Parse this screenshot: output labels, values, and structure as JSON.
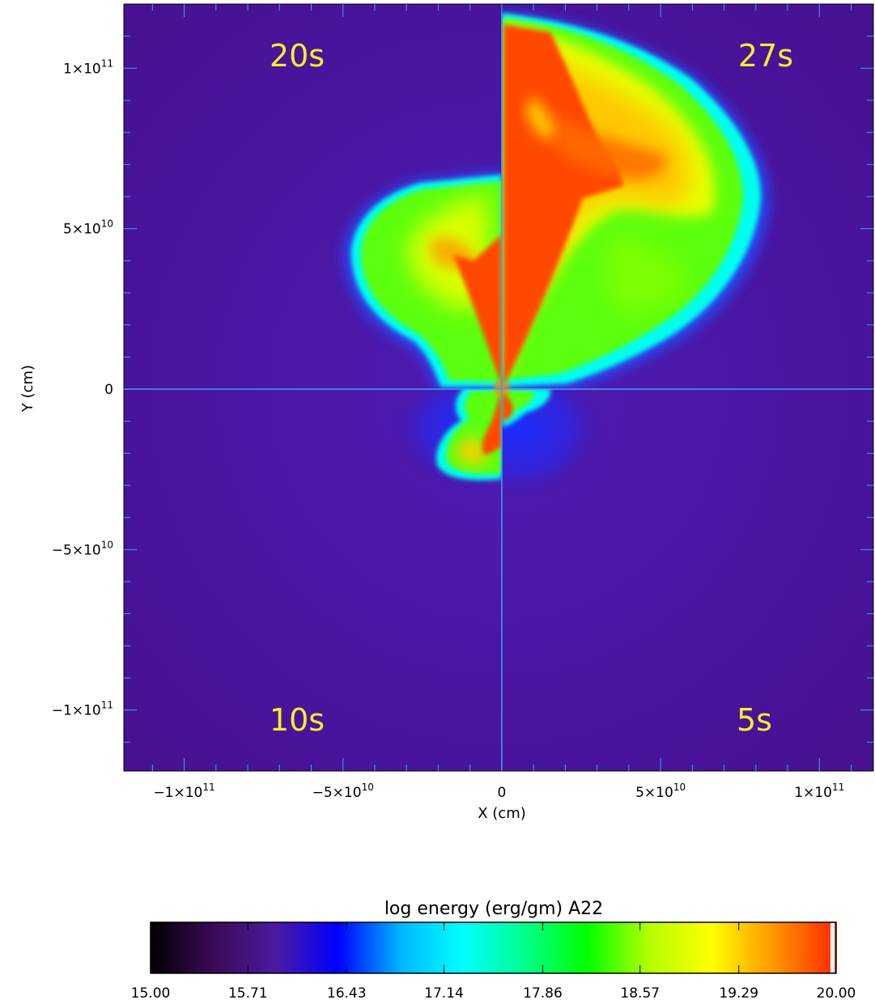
{
  "chart_data": {
    "type": "heatmap",
    "title": "",
    "xlabel": "X (cm)",
    "ylabel": "Y (cm)",
    "xlim": [
      -119000000000.0,
      117000000000.0
    ],
    "ylim": [
      -119000000000.0,
      120000000000.0
    ],
    "x_ticks": [
      {
        "value": -100000000000.0,
        "mant": "−1×10",
        "exp": "11"
      },
      {
        "value": -50000000000.0,
        "mant": "−5×10",
        "exp": "10"
      },
      {
        "value": 0,
        "mant": "0",
        "exp": ""
      },
      {
        "value": 50000000000.0,
        "mant": "5×10",
        "exp": "10"
      },
      {
        "value": 100000000000.0,
        "mant": "1×10",
        "exp": "11"
      }
    ],
    "y_ticks": [
      {
        "value": 100000000000.0,
        "mant": "1×10",
        "exp": "11"
      },
      {
        "value": 50000000000.0,
        "mant": "5×10",
        "exp": "10"
      },
      {
        "value": 0,
        "mant": "0",
        "exp": ""
      },
      {
        "value": -50000000000.0,
        "mant": "−5×10",
        "exp": "10"
      },
      {
        "value": -100000000000.0,
        "mant": "−1×10",
        "exp": "11"
      }
    ],
    "quadrant_labels": {
      "top_left": "20s",
      "top_right": "27s",
      "bottom_left": "10s",
      "bottom_right": "5s"
    },
    "colorbar": {
      "title": "log energy (erg/gm) A22",
      "range": [
        15.0,
        20.0
      ],
      "ticks": [
        "15.00",
        "15.71",
        "16.43",
        "17.14",
        "17.86",
        "18.57",
        "19.29",
        "20.00"
      ],
      "colormap": [
        "#000000",
        "#3a0a55",
        "#4b1aa0",
        "#0000ff",
        "#00b4ff",
        "#00ffff",
        "#00ff8c",
        "#00ff00",
        "#b4ff00",
        "#ffff00",
        "#ff9600",
        "#ff2800"
      ]
    },
    "colors": {
      "background": "#4a12a0",
      "axis_lines": "#3aa0ff",
      "hot": "#ff4a00",
      "warm": "#ffd000",
      "mid": "#66ff00",
      "edge": "#00e8ff",
      "labels": "#f4ee2c"
    }
  }
}
